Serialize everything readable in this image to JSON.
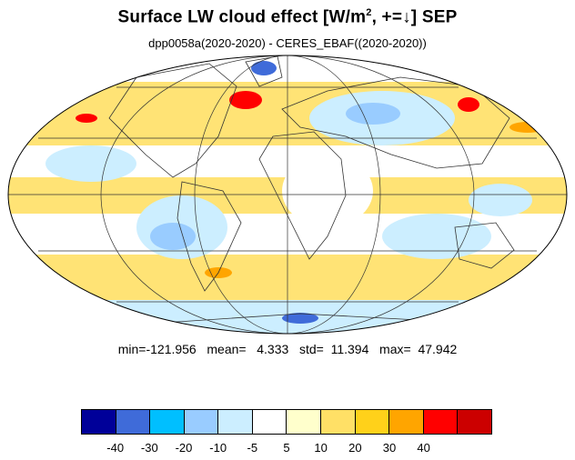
{
  "title": {
    "main_prefix": "Surface LW cloud effect [W/m",
    "superscript": "2",
    "main_suffix": ", +=↓]  SEP",
    "subtitle": "dpp0058a(2020-2020) - CERES_EBAF((2020-2020))"
  },
  "stats": {
    "text": "min=-121.956   mean=   4.333   std=  11.394   max=  47.942"
  },
  "colorbar": {
    "colors": [
      "#000099",
      "#3f6bd9",
      "#00bfff",
      "#99ccff",
      "#cceeff",
      "#ffffff",
      "#ffffcc",
      "#ffe066",
      "#ffd11a",
      "#ffa500",
      "#ff0000",
      "#cc0000"
    ],
    "ticks": [
      "-40",
      "-30",
      "-20",
      "-10",
      "-5",
      "5",
      "10",
      "20",
      "30",
      "40"
    ]
  },
  "map": {
    "projection": "mollweide",
    "graticule": true
  }
}
